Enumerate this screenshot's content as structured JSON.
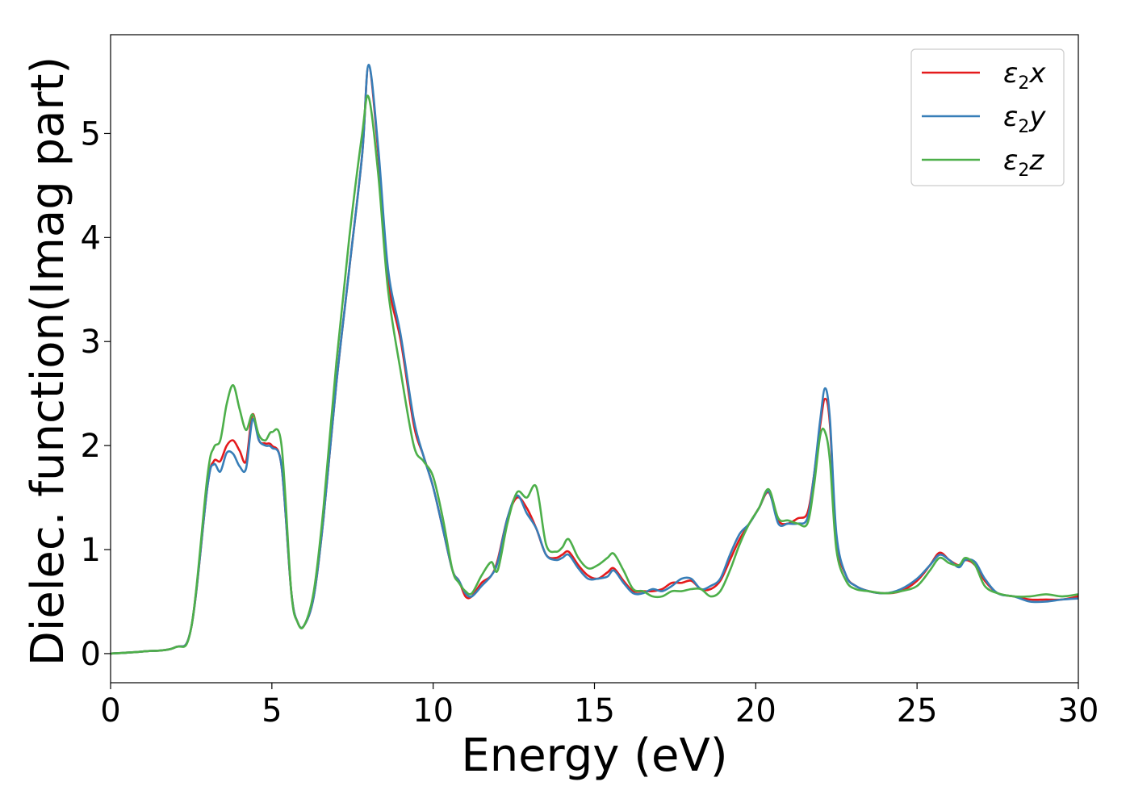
{
  "chart_data": {
    "type": "line",
    "title": "",
    "xlabel": "Energy (eV)",
    "ylabel": "Dielec. function(Imag part)",
    "xlim": [
      0,
      30
    ],
    "ylim": [
      -0.28,
      5.95
    ],
    "xticks": [
      0,
      5,
      10,
      15,
      20,
      25,
      30
    ],
    "xtick_labels": [
      "0",
      "5",
      "10",
      "15",
      "20",
      "25",
      "30"
    ],
    "yticks": [
      0,
      1,
      2,
      3,
      4,
      5
    ],
    "ytick_labels": [
      "0",
      "1",
      "2",
      "3",
      "4",
      "5"
    ],
    "grid": false,
    "legend_position": "top-right",
    "series": [
      {
        "name": "ε₂x",
        "name_base": "ε",
        "name_sub": "2",
        "name_tail": "x",
        "color": "#e41a1c",
        "x": [
          0,
          1,
          2,
          2.5,
          3,
          3.2,
          3.4,
          3.6,
          3.8,
          4.0,
          4.2,
          4.4,
          4.6,
          4.8,
          5.0,
          5.3,
          5.6,
          5.8,
          6.0,
          6.3,
          6.6,
          7.0,
          7.4,
          7.8,
          8.0,
          8.3,
          8.6,
          9.0,
          9.4,
          9.7,
          10.0,
          10.3,
          10.6,
          10.8,
          11.0,
          11.2,
          11.5,
          11.8,
          12.0,
          12.3,
          12.6,
          12.9,
          13.2,
          13.5,
          13.8,
          14.0,
          14.2,
          14.5,
          14.8,
          15.1,
          15.4,
          15.6,
          15.9,
          16.2,
          16.5,
          16.8,
          17.1,
          17.4,
          17.7,
          18.0,
          18.3,
          18.6,
          18.9,
          19.2,
          19.5,
          19.8,
          20.1,
          20.4,
          20.7,
          21.0,
          21.3,
          21.6,
          21.8,
          22.0,
          22.15,
          22.3,
          22.5,
          22.8,
          23.1,
          23.5,
          24.0,
          24.5,
          25.0,
          25.4,
          25.7,
          26.0,
          26.3,
          26.5,
          26.8,
          27.1,
          27.5,
          28.0,
          28.5,
          29.0,
          29.5,
          30.0
        ],
        "y": [
          0,
          0.02,
          0.06,
          0.25,
          1.6,
          1.85,
          1.85,
          2.0,
          2.05,
          1.95,
          1.85,
          2.3,
          2.05,
          2.02,
          2.0,
          1.8,
          0.6,
          0.3,
          0.27,
          0.55,
          1.3,
          2.6,
          3.7,
          4.8,
          5.65,
          4.8,
          3.6,
          3.0,
          2.2,
          1.9,
          1.6,
          1.2,
          0.8,
          0.7,
          0.55,
          0.55,
          0.68,
          0.75,
          0.9,
          1.3,
          1.5,
          1.4,
          1.2,
          0.95,
          0.92,
          0.95,
          0.98,
          0.85,
          0.75,
          0.72,
          0.78,
          0.82,
          0.7,
          0.6,
          0.6,
          0.6,
          0.62,
          0.68,
          0.68,
          0.7,
          0.62,
          0.62,
          0.7,
          0.9,
          1.1,
          1.25,
          1.4,
          1.55,
          1.28,
          1.25,
          1.3,
          1.35,
          1.7,
          2.2,
          2.45,
          2.2,
          1.1,
          0.75,
          0.65,
          0.6,
          0.58,
          0.6,
          0.7,
          0.85,
          0.97,
          0.9,
          0.85,
          0.9,
          0.85,
          0.7,
          0.58,
          0.55,
          0.52,
          0.52,
          0.52,
          0.55
        ]
      },
      {
        "name": "ε₂y",
        "name_base": "ε",
        "name_sub": "2",
        "name_tail": "y",
        "color": "#377eb8",
        "x": [
          0,
          1,
          2,
          2.5,
          3,
          3.2,
          3.4,
          3.6,
          3.8,
          4.0,
          4.2,
          4.4,
          4.6,
          4.8,
          5.0,
          5.3,
          5.6,
          5.8,
          6.0,
          6.3,
          6.6,
          7.0,
          7.4,
          7.8,
          8.0,
          8.3,
          8.6,
          9.0,
          9.4,
          9.7,
          10.0,
          10.3,
          10.6,
          10.8,
          11.0,
          11.2,
          11.5,
          11.8,
          12.0,
          12.3,
          12.6,
          12.9,
          13.2,
          13.5,
          13.8,
          14.0,
          14.2,
          14.5,
          14.8,
          15.1,
          15.4,
          15.6,
          15.9,
          16.2,
          16.5,
          16.8,
          17.1,
          17.4,
          17.7,
          18.0,
          18.3,
          18.6,
          18.9,
          19.2,
          19.5,
          19.8,
          20.1,
          20.4,
          20.7,
          21.0,
          21.3,
          21.6,
          21.8,
          22.0,
          22.15,
          22.3,
          22.5,
          22.8,
          23.1,
          23.5,
          24.0,
          24.5,
          25.0,
          25.4,
          25.7,
          26.0,
          26.3,
          26.5,
          26.8,
          27.1,
          27.5,
          28.0,
          28.5,
          29.0,
          29.5,
          30.0
        ],
        "y": [
          0,
          0.02,
          0.06,
          0.25,
          1.6,
          1.82,
          1.75,
          1.93,
          1.92,
          1.8,
          1.78,
          2.25,
          2.05,
          2.0,
          1.98,
          1.8,
          0.6,
          0.3,
          0.27,
          0.55,
          1.3,
          2.6,
          3.7,
          4.8,
          5.66,
          4.85,
          3.7,
          3.05,
          2.25,
          1.9,
          1.6,
          1.2,
          0.8,
          0.7,
          0.58,
          0.55,
          0.65,
          0.75,
          0.88,
          1.3,
          1.52,
          1.35,
          1.2,
          0.95,
          0.9,
          0.92,
          0.95,
          0.82,
          0.72,
          0.72,
          0.74,
          0.8,
          0.68,
          0.58,
          0.58,
          0.62,
          0.6,
          0.65,
          0.72,
          0.72,
          0.62,
          0.65,
          0.72,
          0.95,
          1.15,
          1.25,
          1.4,
          1.56,
          1.25,
          1.25,
          1.25,
          1.3,
          1.7,
          2.25,
          2.55,
          2.25,
          1.15,
          0.75,
          0.65,
          0.6,
          0.58,
          0.62,
          0.72,
          0.85,
          0.95,
          0.9,
          0.83,
          0.9,
          0.88,
          0.72,
          0.58,
          0.55,
          0.5,
          0.5,
          0.52,
          0.53
        ]
      },
      {
        "name": "ε₂z",
        "name_base": "ε",
        "name_sub": "2",
        "name_tail": "z",
        "color": "#4daf4a",
        "x": [
          0,
          1,
          2,
          2.5,
          3,
          3.2,
          3.4,
          3.6,
          3.8,
          4.0,
          4.2,
          4.4,
          4.6,
          4.8,
          5.0,
          5.3,
          5.6,
          5.8,
          6.0,
          6.3,
          6.6,
          7.0,
          7.4,
          7.8,
          8.0,
          8.3,
          8.6,
          9.0,
          9.4,
          9.7,
          10.0,
          10.3,
          10.6,
          10.8,
          11.0,
          11.2,
          11.5,
          11.8,
          12.0,
          12.3,
          12.6,
          12.9,
          13.2,
          13.5,
          13.8,
          14.0,
          14.2,
          14.5,
          14.8,
          15.1,
          15.4,
          15.6,
          15.9,
          16.2,
          16.5,
          16.8,
          17.1,
          17.4,
          17.7,
          18.0,
          18.3,
          18.6,
          18.9,
          19.2,
          19.5,
          19.8,
          20.1,
          20.4,
          20.7,
          21.0,
          21.3,
          21.6,
          21.8,
          22.0,
          22.15,
          22.3,
          22.5,
          22.8,
          23.1,
          23.5,
          24.0,
          24.5,
          25.0,
          25.4,
          25.7,
          26.0,
          26.3,
          26.5,
          26.8,
          27.1,
          27.5,
          28.0,
          28.5,
          29.0,
          29.5,
          30.0
        ],
        "y": [
          0,
          0.02,
          0.06,
          0.25,
          1.7,
          1.98,
          2.05,
          2.4,
          2.58,
          2.35,
          2.15,
          2.3,
          2.1,
          2.05,
          2.13,
          2.0,
          0.6,
          0.3,
          0.27,
          0.6,
          1.4,
          2.8,
          4.0,
          5.0,
          5.35,
          4.6,
          3.5,
          2.7,
          2.0,
          1.85,
          1.7,
          1.3,
          0.8,
          0.68,
          0.6,
          0.58,
          0.75,
          0.88,
          0.8,
          1.25,
          1.55,
          1.5,
          1.6,
          1.05,
          0.98,
          1.02,
          1.1,
          0.92,
          0.82,
          0.85,
          0.92,
          0.96,
          0.8,
          0.62,
          0.6,
          0.55,
          0.55,
          0.6,
          0.6,
          0.62,
          0.62,
          0.55,
          0.6,
          0.8,
          1.05,
          1.25,
          1.4,
          1.58,
          1.3,
          1.28,
          1.25,
          1.25,
          1.6,
          2.1,
          2.13,
          1.85,
          1.0,
          0.7,
          0.62,
          0.6,
          0.58,
          0.6,
          0.65,
          0.8,
          0.92,
          0.87,
          0.85,
          0.92,
          0.85,
          0.65,
          0.58,
          0.55,
          0.55,
          0.57,
          0.55,
          0.57
        ]
      }
    ]
  }
}
